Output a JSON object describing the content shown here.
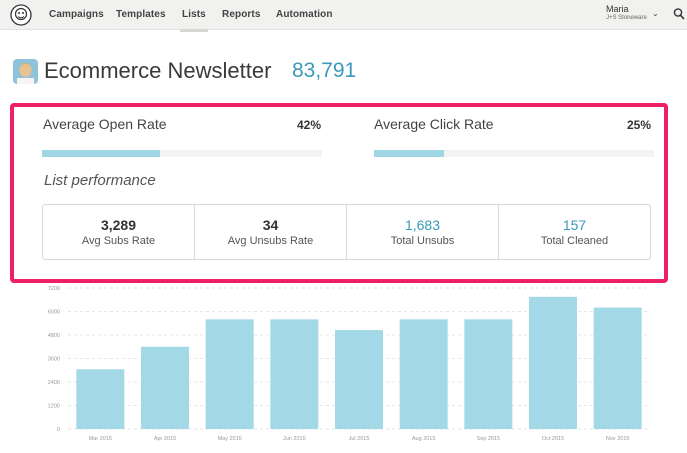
{
  "nav": {
    "items": [
      "Campaigns",
      "Templates",
      "Lists",
      "Reports",
      "Automation"
    ],
    "active": "Lists",
    "user_name": "Maria",
    "user_org": "J+S Stoneware"
  },
  "header": {
    "title": "Ecommerce Newsletter",
    "subscriber_count": "83,791"
  },
  "rates": {
    "open_label": "Average Open Rate",
    "open_value": "42%",
    "open_fraction": 0.42,
    "click_label": "Average Click Rate",
    "click_value": "25%",
    "click_fraction": 0.25
  },
  "performance": {
    "title": "List performance",
    "stats": [
      {
        "value": "3,289",
        "label": "Avg Subs Rate"
      },
      {
        "value": "34",
        "label": "Avg Unsubs Rate"
      },
      {
        "value": "1,683",
        "label": "Total Unsubs"
      },
      {
        "value": "157",
        "label": "Total Cleaned"
      }
    ]
  },
  "colors": {
    "accent": "#3a9ab9",
    "highlight": "#ef1f63",
    "bar": "#a3d8e6"
  },
  "chart_data": {
    "type": "bar",
    "categories": [
      "Mar 2015",
      "Apr 2015",
      "May 2015",
      "Jun 2015",
      "Jul 2015",
      "Aug 2015",
      "Sep 2015",
      "Oct 2015",
      "Nov 2015"
    ],
    "values": [
      3050,
      4200,
      5600,
      5600,
      5050,
      5600,
      5600,
      6750,
      6200
    ],
    "yticks": [
      "0",
      "1200",
      "2400",
      "3600",
      "4800",
      "6000",
      "7200"
    ],
    "ylim": [
      0,
      7200
    ],
    "grid": true,
    "title": "",
    "xlabel": "",
    "ylabel": ""
  }
}
